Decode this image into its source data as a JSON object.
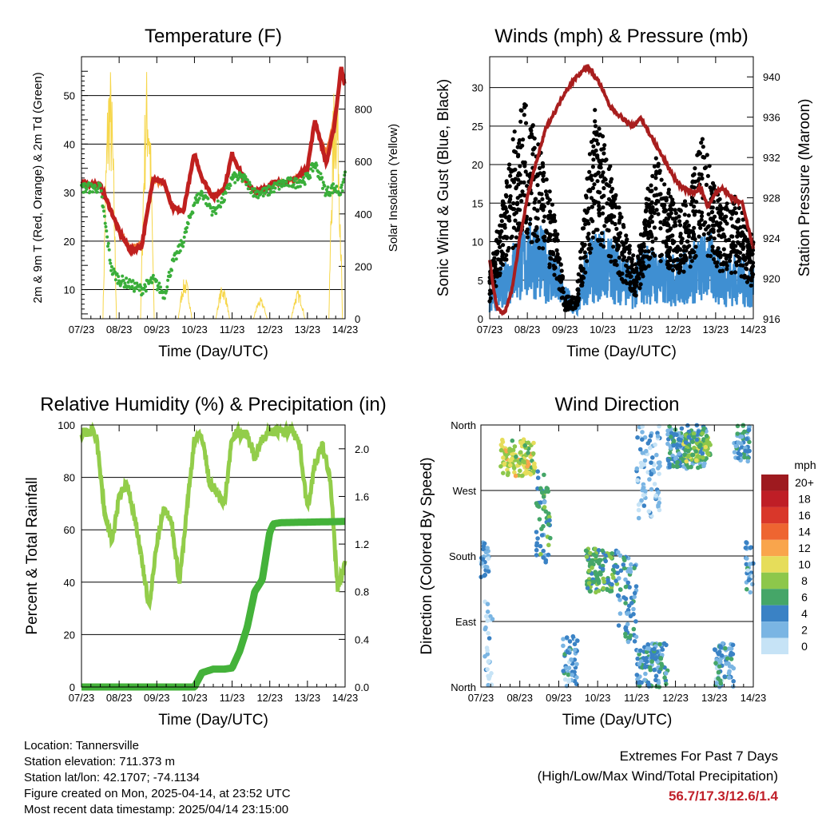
{
  "x_ticks": [
    "07/23",
    "08/23",
    "09/23",
    "10/23",
    "11/23",
    "12/23",
    "13/23",
    "14/23"
  ],
  "x_label": "Time (Day/UTC)",
  "colors": {
    "t2m": "#c0201f",
    "t9m": "#f07830",
    "td": "#3aae3a",
    "solar": "#f6d64a",
    "wind": "#3f8fd2",
    "gust": "#000000",
    "pressure": "#a81e1e",
    "rh": "#92cd4a",
    "precip": "#44b23a",
    "accent": "#c0202a"
  },
  "chart_data": [
    {
      "type": "line",
      "title": "Temperature (F)",
      "xlabel": "Time (Day/UTC)",
      "ylabel": "2m & 9m T (Red, Orange) & 2m Td (Green)",
      "ylabel_right": "Solar Insolation (Yellow)",
      "ylim": [
        4,
        58
      ],
      "ylim_right": [
        0,
        1000
      ],
      "yticks": [
        10,
        20,
        30,
        40,
        50
      ],
      "yticks_right": [
        0,
        200,
        400,
        600,
        800
      ],
      "x": [
        7,
        7.5,
        7.8,
        8.0,
        8.3,
        8.6,
        8.9,
        9.2,
        9.4,
        9.7,
        10.0,
        10.2,
        10.5,
        10.8,
        11.0,
        11.3,
        11.6,
        11.9,
        12.1,
        12.4,
        12.7,
        13.0,
        13.2,
        13.5,
        13.7,
        13.9,
        14.0
      ],
      "series": [
        {
          "name": "2m T",
          "values": [
            32,
            31.5,
            26,
            22,
            18,
            19,
            33,
            32,
            27,
            26,
            38,
            33,
            29,
            31,
            38,
            33,
            30,
            31,
            32,
            32,
            33,
            35,
            45,
            36,
            43,
            56,
            52
          ]
        },
        {
          "name": "9m T",
          "values": [
            32,
            31.5,
            26,
            22,
            18.5,
            19.5,
            32.5,
            31.5,
            27,
            26.5,
            37.5,
            33,
            29,
            31,
            37.5,
            33,
            30,
            31,
            32,
            32,
            33,
            35,
            44,
            38,
            45,
            55,
            53
          ]
        },
        {
          "name": "2m Td",
          "values": [
            31,
            31,
            14,
            12,
            11,
            10,
            12,
            9,
            15,
            20,
            28,
            30,
            26,
            29,
            33,
            33,
            30,
            30,
            31,
            32,
            32,
            33,
            36,
            30,
            31,
            30,
            34
          ]
        }
      ],
      "solar": {
        "name": "Solar Insolation",
        "peaks": [
          [
            7.75,
            990
          ],
          [
            8.75,
            990
          ],
          [
            9.75,
            160
          ],
          [
            10.75,
            130
          ],
          [
            11.75,
            80
          ],
          [
            12.75,
            110
          ],
          [
            13.75,
            980
          ]
        ]
      }
    },
    {
      "type": "scatter",
      "title": "Winds (mph) & Pressure (mb)",
      "xlabel": "Time (Day/UTC)",
      "ylabel": "Sonic Wind & Gust (Blue, Black)",
      "ylabel_right": "Station Pressure (Maroon)",
      "ylim": [
        0,
        34
      ],
      "ylim_right": [
        916,
        942
      ],
      "yticks": [
        0,
        5,
        10,
        15,
        20,
        25,
        30
      ],
      "yticks_right": [
        916,
        920,
        924,
        928,
        932,
        936,
        940
      ],
      "gust_center": {
        "x": [
          7,
          7.3,
          7.6,
          7.9,
          8.2,
          8.5,
          8.8,
          9.0,
          9.3,
          9.6,
          9.8,
          10.0,
          10.3,
          10.6,
          10.9,
          11.1,
          11.4,
          11.7,
          12.0,
          12.3,
          12.6,
          12.9,
          13.2,
          13.5,
          13.8,
          14.0
        ],
        "values": [
          4,
          10,
          16,
          20,
          17,
          13,
          8,
          2,
          2,
          13,
          19,
          17,
          12,
          8,
          5,
          10,
          15,
          12,
          10,
          11,
          17,
          13,
          10,
          11,
          9,
          7
        ]
      },
      "wind_center": {
        "x": [
          7,
          7.4,
          7.8,
          8.2,
          8.6,
          9.0,
          9.3,
          9.6,
          10.0,
          10.4,
          10.8,
          11.2,
          11.6,
          12.0,
          12.4,
          12.8,
          13.2,
          13.6,
          14.0
        ],
        "values": [
          2,
          5,
          7,
          8,
          6,
          3,
          1,
          6,
          7,
          6,
          4,
          6,
          5,
          5,
          6,
          7,
          5,
          5,
          4
        ]
      },
      "pressure": {
        "x": [
          7.0,
          7.1,
          7.2,
          7.4,
          7.6,
          7.8,
          8.0,
          8.2,
          8.5,
          8.8,
          9.0,
          9.3,
          9.6,
          9.9,
          10.2,
          10.5,
          10.8,
          11.0,
          11.3,
          11.6,
          11.9,
          12.1,
          12.4,
          12.6,
          12.8,
          13.0,
          13.2,
          13.4,
          13.7,
          14.0
        ],
        "values": [
          922,
          919,
          917,
          916.5,
          919,
          924,
          928,
          931,
          935,
          937,
          938.5,
          940,
          941,
          939.5,
          937,
          936,
          935,
          936,
          934,
          932,
          930,
          929,
          928.5,
          929,
          927,
          928.5,
          929,
          928,
          927.5,
          923
        ]
      }
    },
    {
      "type": "line",
      "title": "Relative Humidity (%) & Precipitation (in)",
      "xlabel": "Time (Day/UTC)",
      "ylabel": "Percent & Total Rainfall",
      "ylim": [
        0,
        100
      ],
      "ylim_right": [
        0,
        2.2
      ],
      "yticks": [
        0,
        20,
        40,
        60,
        80,
        100
      ],
      "yticks_right": [
        0.0,
        0.4,
        0.8,
        1.2,
        1.6,
        2.0
      ],
      "series": [
        {
          "name": "RH",
          "x": [
            7,
            7.3,
            7.4,
            7.6,
            7.8,
            8.0,
            8.2,
            8.5,
            8.8,
            9.0,
            9.2,
            9.4,
            9.6,
            9.8,
            10.0,
            10.2,
            10.4,
            10.6,
            10.8,
            11.0,
            11.2,
            11.4,
            11.6,
            11.8,
            12.0,
            12.2,
            12.4,
            12.6,
            12.8,
            13.0,
            13.2,
            13.4,
            13.6,
            13.8,
            14.0
          ],
          "values": [
            97,
            97,
            95,
            68,
            55,
            72,
            78,
            58,
            30,
            55,
            68,
            62,
            40,
            68,
            95,
            96,
            78,
            74,
            70,
            96,
            97,
            96,
            88,
            95,
            97,
            98,
            97,
            99,
            92,
            68,
            85,
            92,
            80,
            38,
            47
          ]
        },
        {
          "name": "Precip",
          "x": [
            7,
            10.0,
            10.2,
            10.5,
            10.8,
            11.0,
            11.2,
            11.4,
            11.6,
            11.8,
            12.0,
            12.1,
            12.3,
            14.0
          ],
          "values": [
            0,
            0,
            0.12,
            0.15,
            0.15,
            0.16,
            0.3,
            0.5,
            0.8,
            0.9,
            1.3,
            1.37,
            1.38,
            1.39
          ]
        }
      ]
    },
    {
      "type": "scatter",
      "title": "Wind Direction",
      "xlabel": "Time (Day/UTC)",
      "ylabel": "Direction (Colored By Speed)",
      "ylim": [
        0,
        360
      ],
      "ytick_labels": [
        "North",
        "East",
        "South",
        "West",
        "North"
      ],
      "legend": {
        "title": "mph",
        "labels": [
          "20+",
          "18",
          "16",
          "14",
          "12",
          "10",
          "8",
          "6",
          "4",
          "2",
          "0"
        ],
        "colors": [
          "#9e1a1f",
          "#bf1e26",
          "#d9372a",
          "#ee6531",
          "#f9a54c",
          "#e6dd5a",
          "#8dc74b",
          "#45a668",
          "#3a82c5",
          "#7ab5e3",
          "#c6e3f6"
        ]
      },
      "clusters": [
        {
          "x": [
            7.5,
            8.4
          ],
          "dir": [
            290,
            340
          ],
          "speed": 9
        },
        {
          "x": [
            7.0,
            7.2
          ],
          "dir": [
            150,
            200
          ],
          "speed": 3
        },
        {
          "x": [
            7.1,
            7.3
          ],
          "dir": [
            0,
            120
          ],
          "speed": 1
        },
        {
          "x": [
            8.4,
            8.8
          ],
          "dir": [
            170,
            300
          ],
          "speed": 5
        },
        {
          "x": [
            9.1,
            9.5
          ],
          "dir": [
            0,
            70
          ],
          "speed": 3
        },
        {
          "x": [
            9.7,
            10.5
          ],
          "dir": [
            130,
            190
          ],
          "speed": 6
        },
        {
          "x": [
            10.5,
            11.0
          ],
          "dir": [
            60,
            190
          ],
          "speed": 4
        },
        {
          "x": [
            11.0,
            11.8
          ],
          "dir": [
            0,
            60
          ],
          "speed": 4
        },
        {
          "x": [
            11.0,
            11.6
          ],
          "dir": [
            230,
            360
          ],
          "speed": 2
        },
        {
          "x": [
            11.8,
            12.8
          ],
          "dir": [
            300,
            360
          ],
          "speed": 4
        },
        {
          "x": [
            12.2,
            12.9
          ],
          "dir": [
            310,
            350
          ],
          "speed": 7
        },
        {
          "x": [
            13.0,
            13.5
          ],
          "dir": [
            0,
            60
          ],
          "speed": 3
        },
        {
          "x": [
            13.5,
            13.9
          ],
          "dir": [
            310,
            360
          ],
          "speed": 4
        },
        {
          "x": [
            13.8,
            14.0
          ],
          "dir": [
            130,
            200
          ],
          "speed": 3
        }
      ]
    }
  ],
  "info": {
    "location": "Location: Tannersville",
    "elevation": "Station elevation: 711.373 m",
    "latlon": "Station lat/lon: 42.1707; -74.1134",
    "created": "Figure created on Mon, 2025-04-14, at 23:52 UTC",
    "recent": "Most recent data timestamp: 2025/04/14 23:15:00"
  },
  "extremes": {
    "title": "Extremes For Past 7 Days",
    "subtitle": "(High/Low/Max Wind/Total Precipitation)",
    "values": "56.7/17.3/12.6/1.4"
  }
}
